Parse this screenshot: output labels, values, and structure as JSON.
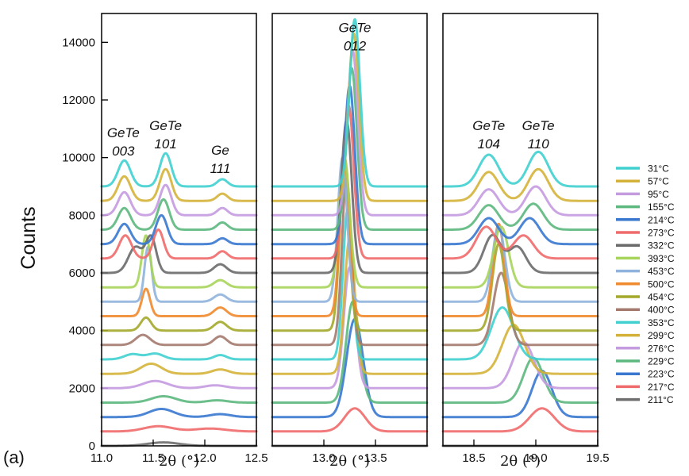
{
  "panel_tag": "(a)",
  "chart_data": {
    "type": "line",
    "ylabel": "Counts",
    "ylim": [
      0,
      15000
    ],
    "yticks": [
      0,
      2000,
      4000,
      6000,
      8000,
      10000,
      12000,
      14000
    ],
    "grid": false,
    "legend_position": "right",
    "series": [
      {
        "name": "211°C",
        "color": "#6e6e6e"
      },
      {
        "name": "217°C",
        "color": "#ef6a6a"
      },
      {
        "name": "223°C",
        "color": "#3a78d0"
      },
      {
        "name": "229°C",
        "color": "#5cb87e"
      },
      {
        "name": "276°C",
        "color": "#c59be0"
      },
      {
        "name": "299°C",
        "color": "#d4b23a"
      },
      {
        "name": "353°C",
        "color": "#3fd0cf"
      },
      {
        "name": "400°C",
        "color": "#a57a6e"
      },
      {
        "name": "454°C",
        "color": "#a4a82a"
      },
      {
        "name": "500°C",
        "color": "#f08a2e"
      },
      {
        "name": "453°C",
        "color": "#8fb3dc"
      },
      {
        "name": "393°C",
        "color": "#a7d45a"
      },
      {
        "name": "332°C",
        "color": "#6a6a6a"
      },
      {
        "name": "273°C",
        "color": "#ef6a6a"
      },
      {
        "name": "214°C",
        "color": "#3a78d0"
      },
      {
        "name": "155°C",
        "color": "#5cb87e"
      },
      {
        "name": "95°C",
        "color": "#c59be0"
      },
      {
        "name": "57°C",
        "color": "#d4b23a"
      },
      {
        "name": "31°C",
        "color": "#3fd0cf"
      }
    ],
    "offsets": [
      0,
      500,
      1000,
      1500,
      2000,
      2500,
      3000,
      3500,
      4000,
      4500,
      5000,
      5500,
      6000,
      6500,
      7000,
      7500,
      8000,
      8500,
      9000
    ],
    "panels": [
      {
        "xlabel": "2θ (°)",
        "xlim": [
          11.0,
          12.5
        ],
        "xticks": [
          "11.0",
          "11.5",
          "12.0",
          "12.5"
        ],
        "annotations": [
          {
            "lines": [
              "GeTe",
              "003"
            ],
            "x": 11.21,
            "y": 10700
          },
          {
            "lines": [
              "GeTe",
              "101"
            ],
            "x": 11.62,
            "y": 10950
          },
          {
            "lines": [
              "Ge",
              "111"
            ],
            "x": 12.15,
            "y": 10100
          }
        ],
        "peaks": [
          [
            [
              11.6,
              120,
              0.15
            ]
          ],
          [
            [
              11.55,
              180,
              0.14
            ],
            [
              12.05,
              100,
              0.15
            ]
          ],
          [
            [
              11.58,
              280,
              0.12
            ],
            [
              12.15,
              100,
              0.1
            ]
          ],
          [
            [
              11.6,
              220,
              0.12
            ],
            [
              12.12,
              80,
              0.1
            ]
          ],
          [
            [
              11.52,
              250,
              0.12
            ],
            [
              12.1,
              100,
              0.1
            ]
          ],
          [
            [
              11.48,
              350,
              0.1
            ],
            [
              12.15,
              150,
              0.08
            ]
          ],
          [
            [
              11.3,
              180,
              0.08
            ],
            [
              11.52,
              200,
              0.08
            ],
            [
              12.15,
              150,
              0.06
            ]
          ],
          [
            [
              11.4,
              350,
              0.07
            ],
            [
              12.15,
              300,
              0.06
            ]
          ],
          [
            [
              11.43,
              450,
              0.05
            ],
            [
              12.15,
              300,
              0.06
            ]
          ],
          [
            [
              11.43,
              950,
              0.04
            ],
            [
              12.15,
              300,
              0.06
            ]
          ],
          [
            [
              11.45,
              1900,
              0.035
            ],
            [
              12.15,
              250,
              0.06
            ]
          ],
          [
            [
              11.43,
              1800,
              0.04
            ],
            [
              12.15,
              250,
              0.06
            ]
          ],
          [
            [
              11.33,
              900,
              0.07
            ],
            [
              11.48,
              1200,
              0.05
            ],
            [
              12.15,
              300,
              0.06
            ]
          ],
          [
            [
              11.23,
              800,
              0.06
            ],
            [
              11.55,
              1000,
              0.05
            ],
            [
              12.17,
              250,
              0.05
            ]
          ],
          [
            [
              11.22,
              700,
              0.06
            ],
            [
              11.58,
              1000,
              0.055
            ],
            [
              12.17,
              200,
              0.05
            ]
          ],
          [
            [
              11.22,
              750,
              0.06
            ],
            [
              11.6,
              1050,
              0.055
            ],
            [
              12.17,
              250,
              0.05
            ]
          ],
          [
            [
              11.22,
              800,
              0.06
            ],
            [
              11.62,
              1050,
              0.055
            ],
            [
              12.17,
              250,
              0.05
            ]
          ],
          [
            [
              11.22,
              850,
              0.06
            ],
            [
              11.62,
              1100,
              0.055
            ],
            [
              12.17,
              250,
              0.05
            ]
          ],
          [
            [
              11.22,
              900,
              0.06
            ],
            [
              11.62,
              1150,
              0.055
            ],
            [
              12.17,
              250,
              0.05
            ]
          ]
        ]
      },
      {
        "xlabel": "2θ (°)",
        "xlim": [
          12.5,
          14.0
        ],
        "xticks": [
          "13.0",
          "13.5"
        ],
        "xtick_values": [
          13.0,
          13.5
        ],
        "annotations": [
          {
            "lines": [
              "GeTe",
              "012"
            ],
            "x": 13.3,
            "y": 14350
          }
        ],
        "peaks": [
          [],
          [
            [
              13.3,
              800,
              0.1
            ]
          ],
          [
            [
              13.3,
              3400,
              0.08
            ]
          ],
          [
            [
              13.28,
              3500,
              0.065
            ]
          ],
          [
            [
              13.25,
              4200,
              0.055
            ]
          ],
          [
            [
              13.25,
              4700,
              0.05
            ]
          ],
          [
            [
              13.23,
              5200,
              0.045
            ]
          ],
          [
            [
              13.22,
              5800,
              0.045
            ]
          ],
          [
            [
              13.2,
              6000,
              0.045
            ]
          ],
          [
            [
              13.2,
              5500,
              0.045
            ]
          ],
          [
            [
              13.18,
              5000,
              0.045
            ]
          ],
          [
            [
              13.2,
              4500,
              0.05
            ]
          ],
          [
            [
              13.22,
              5300,
              0.05
            ]
          ],
          [
            [
              13.24,
              5300,
              0.05
            ]
          ],
          [
            [
              13.25,
              5500,
              0.05
            ]
          ],
          [
            [
              13.27,
              5600,
              0.05
            ]
          ],
          [
            [
              13.28,
              5700,
              0.05
            ]
          ],
          [
            [
              13.29,
              5800,
              0.05
            ]
          ],
          [
            [
              13.3,
              5800,
              0.05
            ]
          ]
        ]
      },
      {
        "xlabel": "2θ (°)",
        "xlim": [
          18.25,
          19.5
        ],
        "xticks": [
          "18.5",
          "19.0",
          "19.5"
        ],
        "xtick_values": [
          18.5,
          19.0,
          19.5
        ],
        "annotations": [
          {
            "lines": [
              "GeTe",
              "104"
            ],
            "x": 18.62,
            "y": 10950
          },
          {
            "lines": [
              "GeTe",
              "110"
            ],
            "x": 19.02,
            "y": 10950
          }
        ],
        "peaks": [
          [],
          [
            [
              19.05,
              800,
              0.1
            ]
          ],
          [
            [
              19.05,
              1600,
              0.08
            ]
          ],
          [
            [
              18.98,
              1550,
              0.08
            ]
          ],
          [
            [
              18.9,
              1600,
              0.085
            ]
          ],
          [
            [
              18.82,
              1700,
              0.09
            ]
          ],
          [
            [
              18.73,
              1800,
              0.09
            ]
          ],
          [
            [
              18.72,
              2500,
              0.06
            ]
          ],
          [
            [
              18.7,
              3000,
              0.05
            ]
          ],
          [
            [
              18.7,
              3200,
              0.045
            ]
          ],
          [
            [
              18.7,
              2600,
              0.05
            ]
          ],
          [
            [
              18.72,
              2100,
              0.06
            ]
          ],
          [
            [
              18.65,
              1300,
              0.07
            ],
            [
              18.85,
              900,
              0.07
            ]
          ],
          [
            [
              18.6,
              1100,
              0.08
            ],
            [
              18.9,
              800,
              0.08
            ]
          ],
          [
            [
              18.62,
              900,
              0.08
            ],
            [
              18.95,
              900,
              0.08
            ]
          ],
          [
            [
              18.62,
              850,
              0.08
            ],
            [
              18.98,
              900,
              0.08
            ]
          ],
          [
            [
              18.62,
              900,
              0.08
            ],
            [
              19.0,
              1000,
              0.08
            ]
          ],
          [
            [
              18.62,
              1000,
              0.08
            ],
            [
              19.02,
              1100,
              0.08
            ]
          ],
          [
            [
              18.62,
              1100,
              0.08
            ],
            [
              19.02,
              1200,
              0.08
            ]
          ]
        ]
      }
    ]
  }
}
